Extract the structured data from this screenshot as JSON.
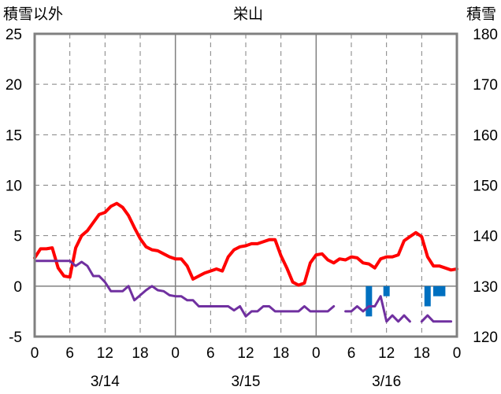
{
  "chart_data": {
    "type": "line",
    "title": "栄山",
    "left_axis_label": "積雪以外",
    "right_axis_label": "積雪",
    "left_ylim": [
      -5,
      25
    ],
    "left_ticks": [
      -5,
      0,
      5,
      10,
      15,
      20,
      25
    ],
    "right_ylim": [
      120,
      180
    ],
    "right_ticks": [
      120,
      130,
      140,
      150,
      160,
      170,
      180
    ],
    "x_range_hours": [
      0,
      72
    ],
    "x_ticks_hours": [
      0,
      6,
      12,
      18,
      24,
      30,
      36,
      42,
      48,
      54,
      60,
      66,
      72
    ],
    "x_tick_labels": [
      "0",
      "6",
      "12",
      "18",
      "0",
      "6",
      "12",
      "18",
      "0",
      "6",
      "12",
      "18",
      "0"
    ],
    "date_labels": [
      {
        "label": "3/14",
        "hour": 12
      },
      {
        "label": "3/15",
        "hour": 36
      },
      {
        "label": "3/16",
        "hour": 60
      }
    ],
    "grid": true,
    "colors": {
      "temperature": "#ff0000",
      "secondary": "#7030a0",
      "bars": "#0070c0",
      "axes": "#808080",
      "grid": "#808080"
    },
    "series": [
      {
        "name": "",
        "axis": "left",
        "color": "#ff0000",
        "points": [
          [
            0,
            2.8
          ],
          [
            1,
            3.7
          ],
          [
            2,
            3.7
          ],
          [
            3,
            3.8
          ],
          [
            4,
            1.8
          ],
          [
            5,
            1.0
          ],
          [
            6,
            0.9
          ],
          [
            7,
            3.8
          ],
          [
            8,
            5.0
          ],
          [
            9,
            5.5
          ],
          [
            10,
            6.3
          ],
          [
            11,
            7.1
          ],
          [
            12,
            7.3
          ],
          [
            13,
            7.9
          ],
          [
            14,
            8.2
          ],
          [
            15,
            7.8
          ],
          [
            16,
            7.0
          ],
          [
            17,
            5.8
          ],
          [
            18,
            4.7
          ],
          [
            19,
            3.9
          ],
          [
            20,
            3.6
          ],
          [
            21,
            3.5
          ],
          [
            22,
            3.2
          ],
          [
            23,
            2.9
          ],
          [
            24,
            2.7
          ],
          [
            25,
            2.7
          ],
          [
            26,
            2.0
          ],
          [
            27,
            0.7
          ],
          [
            28,
            1.0
          ],
          [
            29,
            1.3
          ],
          [
            30,
            1.5
          ],
          [
            31,
            1.7
          ],
          [
            32,
            1.5
          ],
          [
            33,
            2.9
          ],
          [
            34,
            3.6
          ],
          [
            35,
            3.9
          ],
          [
            36,
            4.0
          ],
          [
            37,
            4.2
          ],
          [
            38,
            4.2
          ],
          [
            39,
            4.4
          ],
          [
            40,
            4.6
          ],
          [
            41,
            4.6
          ],
          [
            42,
            3.0
          ],
          [
            43,
            1.8
          ],
          [
            44,
            0.4
          ],
          [
            45,
            0.1
          ],
          [
            46,
            0.3
          ],
          [
            47,
            2.3
          ],
          [
            48,
            3.1
          ],
          [
            49,
            3.2
          ],
          [
            50,
            2.6
          ],
          [
            51,
            2.3
          ],
          [
            52,
            2.7
          ],
          [
            53,
            2.6
          ],
          [
            54,
            2.9
          ],
          [
            55,
            2.8
          ],
          [
            56,
            2.3
          ],
          [
            57,
            2.2
          ],
          [
            58,
            1.8
          ],
          [
            59,
            2.7
          ],
          [
            60,
            2.9
          ],
          [
            61,
            2.9
          ],
          [
            62,
            3.1
          ],
          [
            63,
            4.5
          ],
          [
            64,
            4.9
          ],
          [
            65,
            5.3
          ],
          [
            66,
            4.9
          ],
          [
            67,
            2.9
          ],
          [
            68,
            2.0
          ],
          [
            69,
            2.0
          ],
          [
            70,
            1.8
          ],
          [
            71,
            1.6
          ],
          [
            72,
            1.7
          ]
        ]
      },
      {
        "name": "",
        "axis": "left",
        "color": "#7030a0",
        "segments": [
          [
            [
              0,
              2.5
            ],
            [
              6,
              2.5
            ],
            [
              7,
              2.0
            ],
            [
              8,
              2.4
            ],
            [
              9,
              2.0
            ],
            [
              10,
              1.0
            ],
            [
              11,
              1.0
            ],
            [
              12,
              0.4
            ],
            [
              13,
              -0.5
            ],
            [
              14,
              -0.5
            ],
            [
              15,
              -0.5
            ],
            [
              16,
              0.0
            ],
            [
              17,
              -1.4
            ],
            [
              18,
              -0.9
            ],
            [
              19,
              -0.4
            ],
            [
              20,
              0.0
            ],
            [
              21,
              -0.4
            ],
            [
              22,
              -0.5
            ],
            [
              23,
              -0.9
            ],
            [
              24,
              -1.0
            ],
            [
              25,
              -1.0
            ],
            [
              26,
              -1.4
            ],
            [
              27,
              -1.4
            ],
            [
              28,
              -2.0
            ],
            [
              29,
              -2.0
            ],
            [
              30,
              -2.0
            ],
            [
              31,
              -2.0
            ],
            [
              32,
              -2.0
            ],
            [
              33,
              -2.0
            ],
            [
              34,
              -2.4
            ],
            [
              35,
              -2.0
            ],
            [
              36,
              -3.0
            ],
            [
              37,
              -2.5
            ],
            [
              38,
              -2.5
            ],
            [
              39,
              -2.0
            ],
            [
              40,
              -2.0
            ],
            [
              41,
              -2.5
            ],
            [
              42,
              -2.5
            ],
            [
              43,
              -2.5
            ],
            [
              44,
              -2.5
            ],
            [
              45,
              -2.5
            ],
            [
              46,
              -2.0
            ],
            [
              47,
              -2.5
            ],
            [
              48,
              -2.5
            ],
            [
              49,
              -2.5
            ],
            [
              50,
              -2.5
            ],
            [
              51,
              -2.0
            ]
          ],
          [
            [
              53,
              -2.5
            ],
            [
              54,
              -2.5
            ],
            [
              55,
              -2.0
            ],
            [
              56,
              -2.5
            ],
            [
              57,
              -2.0
            ],
            [
              58,
              -2.0
            ],
            [
              59,
              -1.0
            ],
            [
              60,
              -3.5
            ],
            [
              61,
              -2.9
            ],
            [
              62,
              -3.5
            ],
            [
              63,
              -2.9
            ],
            [
              64,
              -3.5
            ]
          ],
          [
            [
              66,
              -3.5
            ],
            [
              67,
              -2.9
            ],
            [
              68,
              -3.5
            ],
            [
              69,
              -3.5
            ],
            [
              70,
              -3.5
            ],
            [
              71,
              -3.5
            ]
          ]
        ]
      }
    ],
    "bars": [
      {
        "hour": 57,
        "from": 0,
        "to": -3.0
      },
      {
        "hour": 60,
        "from": 0,
        "to": -1.0
      },
      {
        "hour": 67,
        "from": 0,
        "to": -2.0
      },
      {
        "hour": 68.5,
        "from": 0,
        "to": -1.0
      },
      {
        "hour": 69.5,
        "from": 0,
        "to": -1.0
      }
    ]
  }
}
